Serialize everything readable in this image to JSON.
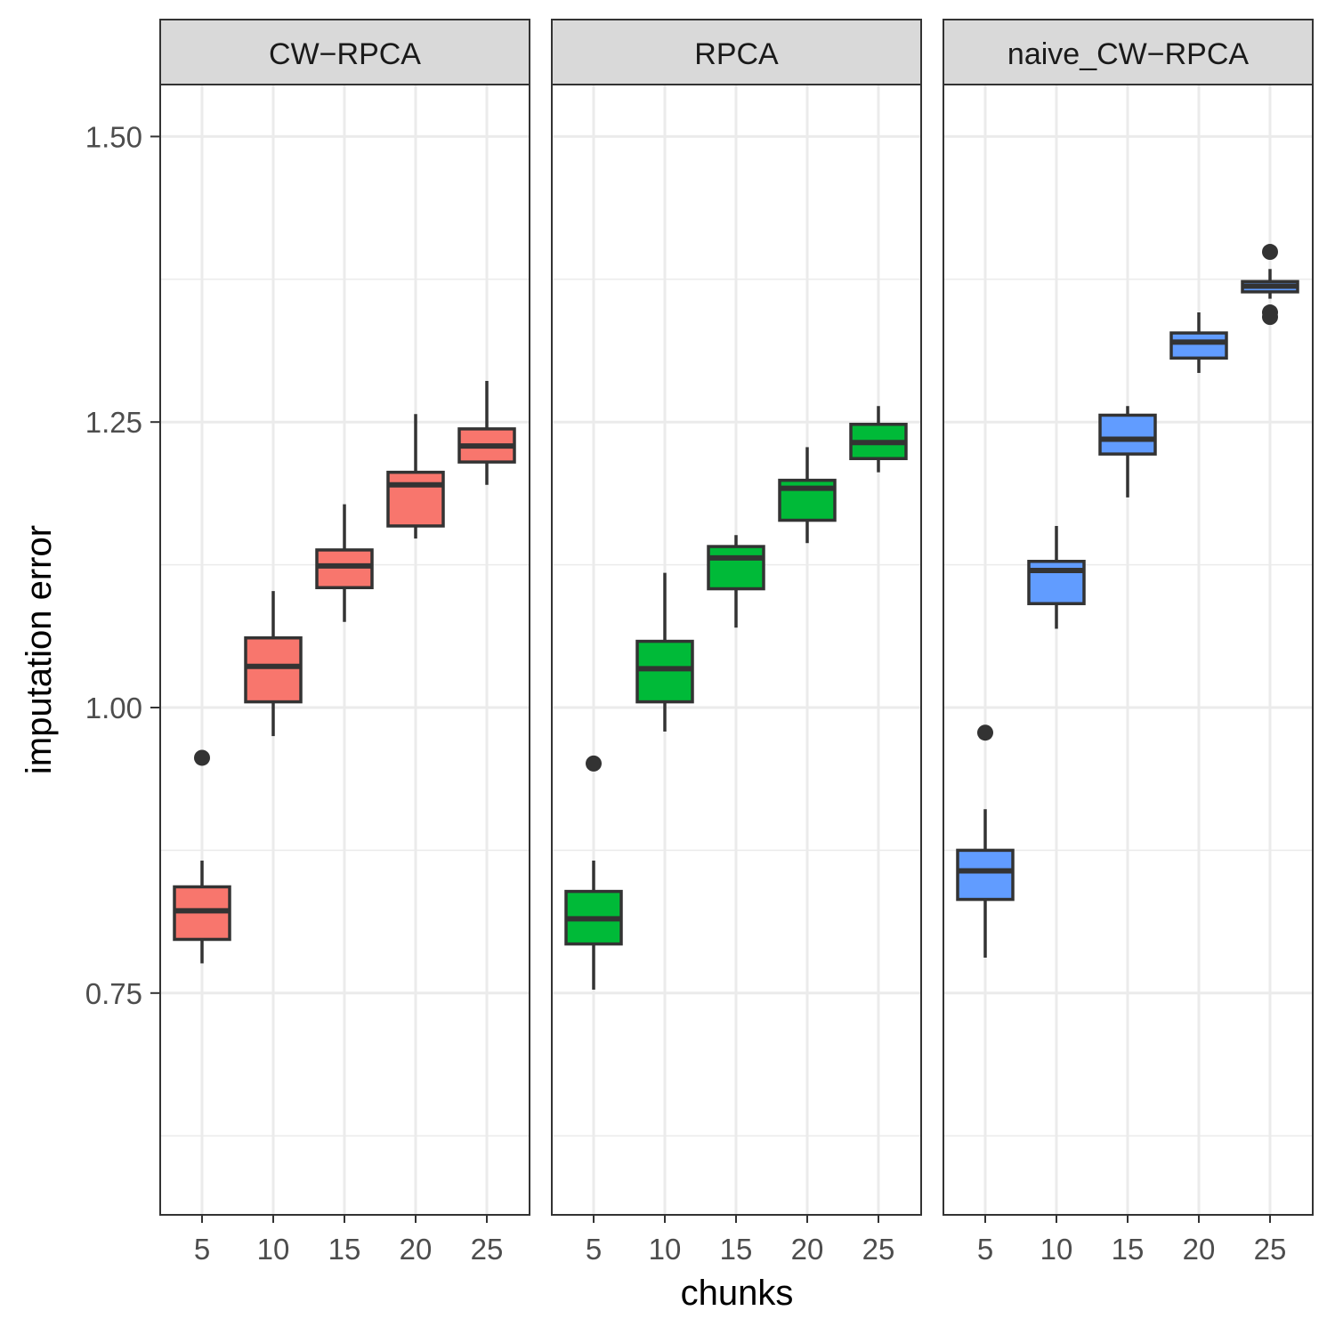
{
  "chart_data": {
    "type": "boxplot",
    "xlabel": "chunks",
    "ylabel": "imputation error",
    "ylim": [
      0.56,
      1.55
    ],
    "y_ticks": [
      0.75,
      1.0,
      1.25,
      1.5
    ],
    "y_tick_labels": [
      "0.75",
      "1.00",
      "1.25",
      "1.50"
    ],
    "categories": [
      "5",
      "10",
      "15",
      "20",
      "25"
    ],
    "grid": true,
    "panels": [
      {
        "name": "CW−RPCA",
        "color": "#F8766D",
        "boxes": [
          {
            "x": "5",
            "whisker_low": 0.776,
            "q1": 0.797,
            "median": 0.822,
            "q3": 0.843,
            "whisker_high": 0.866,
            "outliers": [
              0.956
            ]
          },
          {
            "x": "10",
            "whisker_low": 0.975,
            "q1": 1.005,
            "median": 1.036,
            "q3": 1.061,
            "whisker_high": 1.102,
            "outliers": []
          },
          {
            "x": "15",
            "whisker_low": 1.075,
            "q1": 1.105,
            "median": 1.124,
            "q3": 1.138,
            "whisker_high": 1.178,
            "outliers": []
          },
          {
            "x": "20",
            "whisker_low": 1.148,
            "q1": 1.159,
            "median": 1.195,
            "q3": 1.206,
            "whisker_high": 1.257,
            "outliers": []
          },
          {
            "x": "25",
            "whisker_low": 1.195,
            "q1": 1.215,
            "median": 1.229,
            "q3": 1.244,
            "whisker_high": 1.286,
            "outliers": []
          }
        ]
      },
      {
        "name": "RPCA",
        "color": "#00BA38",
        "boxes": [
          {
            "x": "5",
            "whisker_low": 0.753,
            "q1": 0.793,
            "median": 0.815,
            "q3": 0.839,
            "whisker_high": 0.866,
            "outliers": [
              0.951
            ]
          },
          {
            "x": "10",
            "whisker_low": 0.979,
            "q1": 1.005,
            "median": 1.034,
            "q3": 1.058,
            "whisker_high": 1.118,
            "outliers": []
          },
          {
            "x": "15",
            "whisker_low": 1.07,
            "q1": 1.104,
            "median": 1.131,
            "q3": 1.141,
            "whisker_high": 1.151,
            "outliers": []
          },
          {
            "x": "20",
            "whisker_low": 1.144,
            "q1": 1.164,
            "median": 1.192,
            "q3": 1.199,
            "whisker_high": 1.228,
            "outliers": []
          },
          {
            "x": "25",
            "whisker_low": 1.206,
            "q1": 1.218,
            "median": 1.232,
            "q3": 1.248,
            "whisker_high": 1.264,
            "outliers": []
          }
        ]
      },
      {
        "name": "naive_CW−RPCA",
        "color": "#619CFF",
        "boxes": [
          {
            "x": "5",
            "whisker_low": 0.781,
            "q1": 0.832,
            "median": 0.857,
            "q3": 0.875,
            "whisker_high": 0.911,
            "outliers": [
              0.978
            ]
          },
          {
            "x": "10",
            "whisker_low": 1.069,
            "q1": 1.091,
            "median": 1.12,
            "q3": 1.128,
            "whisker_high": 1.159,
            "outliers": []
          },
          {
            "x": "15",
            "whisker_low": 1.184,
            "q1": 1.222,
            "median": 1.235,
            "q3": 1.256,
            "whisker_high": 1.264,
            "outliers": []
          },
          {
            "x": "20",
            "whisker_low": 1.293,
            "q1": 1.306,
            "median": 1.32,
            "q3": 1.328,
            "whisker_high": 1.346,
            "outliers": []
          },
          {
            "x": "25",
            "whisker_low": 1.358,
            "q1": 1.364,
            "median": 1.369,
            "q3": 1.373,
            "whisker_high": 1.384,
            "outliers": [
              1.399,
              1.346,
              1.342
            ]
          }
        ]
      }
    ]
  }
}
